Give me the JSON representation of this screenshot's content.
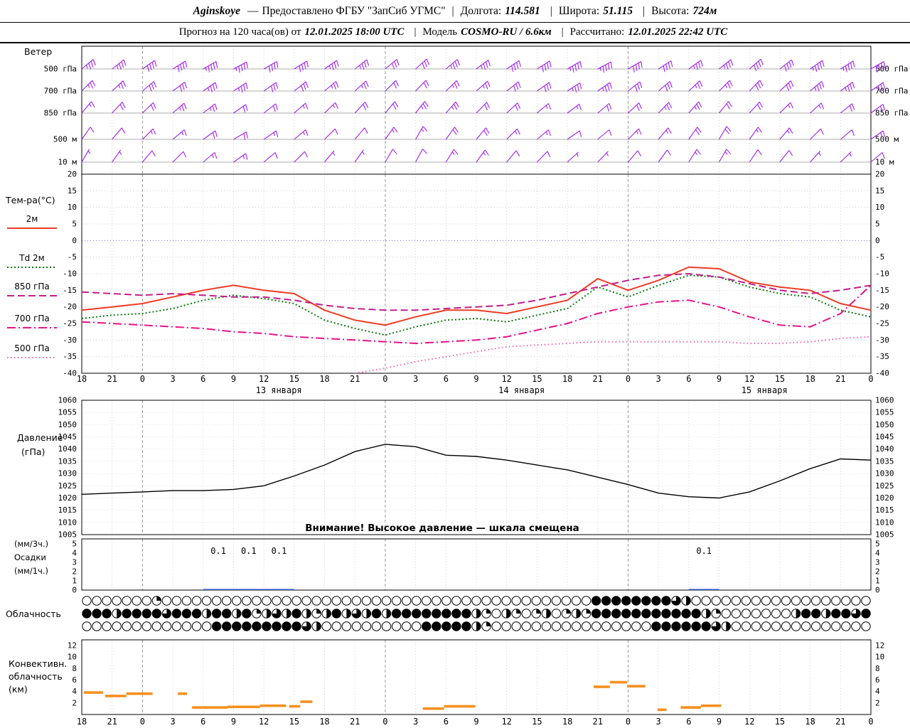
{
  "header": {
    "station": "Aginskoye",
    "dash": "—",
    "provider": "Предоставлено ФГБУ \"ЗапСиб УГМС\"",
    "sep": "|",
    "lon_label": "Долгота:",
    "lon_value": "114.581",
    "lat_label": "Широта:",
    "lat_value": "51.115",
    "alt_label": "Высота:",
    "alt_value": "724м",
    "forecast_label": "Прогноз на 120 часа(ов) от",
    "forecast_run": "12.01.2025 18:00 UTC",
    "model_label": "Модель",
    "model_value": "COSMO-RU / 6.6км",
    "calc_label": "Рассчитано:",
    "calc_value": "12.01.2025 22:42 UTC"
  },
  "chart_data": {
    "type": "meteogram",
    "x": {
      "hour_labels": [
        "18",
        "21",
        "0",
        "3",
        "6",
        "9",
        "12",
        "15",
        "18",
        "21",
        "0",
        "3",
        "6",
        "9",
        "12",
        "15",
        "18",
        "21",
        "0",
        "3",
        "6",
        "9",
        "12",
        "15",
        "18",
        "21",
        "0"
      ],
      "date_labels": [
        {
          "text": "13 января",
          "tick": 6
        },
        {
          "text": "14 января",
          "tick": 14
        },
        {
          "text": "15 января",
          "tick": 22
        }
      ],
      "hours_total": 78
    },
    "wind": {
      "panel_label": "Ветер",
      "color": "#a020f0",
      "levels": [
        {
          "label": "500 гПа",
          "dirs": [
            50,
            52,
            55,
            58,
            60,
            62,
            60,
            58,
            55,
            52,
            50,
            48,
            50,
            53,
            56,
            58,
            60,
            62,
            60,
            57,
            54,
            51,
            49,
            52,
            55,
            58,
            60
          ],
          "speeds": [
            35,
            35,
            40,
            40,
            45,
            45,
            40,
            40,
            35,
            35,
            30,
            30,
            35,
            35,
            40,
            40,
            45,
            45,
            40,
            40,
            35,
            35,
            40,
            40,
            45,
            45,
            40
          ]
        },
        {
          "label": "700 гПа",
          "dirs": [
            45,
            47,
            50,
            53,
            55,
            57,
            55,
            52,
            50,
            48,
            45,
            44,
            46,
            49,
            52,
            55,
            57,
            55,
            52,
            50,
            47,
            45,
            44,
            47,
            50,
            53,
            55
          ],
          "speeds": [
            25,
            25,
            30,
            30,
            35,
            35,
            30,
            30,
            25,
            25,
            20,
            20,
            25,
            25,
            30,
            30,
            35,
            35,
            30,
            30,
            25,
            25,
            30,
            30,
            35,
            35,
            30
          ]
        },
        {
          "label": "850 гПа",
          "dirs": [
            40,
            43,
            46,
            49,
            52,
            55,
            52,
            49,
            46,
            43,
            40,
            38,
            41,
            44,
            47,
            50,
            53,
            50,
            47,
            44,
            41,
            39,
            42,
            45,
            48,
            51,
            54
          ],
          "speeds": [
            15,
            20,
            20,
            25,
            25,
            20,
            20,
            15,
            15,
            20,
            20,
            25,
            25,
            20,
            20,
            15,
            15,
            20,
            20,
            25,
            25,
            20,
            20,
            15,
            15,
            20,
            20
          ]
        },
        {
          "label": "500 м",
          "dirs": [
            35,
            40,
            45,
            50,
            55,
            60,
            55,
            50,
            45,
            40,
            35,
            30,
            35,
            40,
            45,
            50,
            55,
            50,
            45,
            40,
            35,
            30,
            35,
            40,
            45,
            50,
            55
          ],
          "speeds": [
            10,
            10,
            15,
            15,
            20,
            20,
            15,
            15,
            10,
            10,
            15,
            15,
            20,
            20,
            15,
            15,
            10,
            10,
            15,
            15,
            20,
            20,
            15,
            15,
            10,
            10,
            15
          ]
        },
        {
          "label": "10 м",
          "dirs": [
            30,
            35,
            40,
            45,
            50,
            55,
            50,
            45,
            40,
            35,
            30,
            28,
            32,
            36,
            40,
            44,
            48,
            44,
            40,
            36,
            32,
            30,
            34,
            38,
            42,
            46,
            50
          ],
          "speeds": [
            5,
            5,
            10,
            10,
            15,
            15,
            10,
            10,
            5,
            5,
            10,
            10,
            15,
            15,
            10,
            10,
            5,
            5,
            10,
            10,
            15,
            15,
            10,
            10,
            5,
            5,
            10
          ]
        }
      ]
    },
    "temperature": {
      "panel_label": "Тем-ра(°C)",
      "y_min": -40,
      "y_max": 20,
      "y_ticks": [
        20,
        15,
        10,
        5,
        0,
        -5,
        -10,
        -15,
        -20,
        -25,
        -30,
        -35,
        -40
      ],
      "series": [
        {
          "name": "2м",
          "color": "#ef3b24",
          "style": "solid",
          "values": [
            -21,
            -20,
            -19,
            -17,
            -15,
            -13.5,
            -15,
            -16,
            -21,
            -24,
            -25.5,
            -23,
            -21,
            -21,
            -22,
            -20,
            -18,
            -11.5,
            -15,
            -12,
            -8,
            -8.5,
            -12.5,
            -14,
            -15,
            -19,
            -21
          ]
        },
        {
          "name": "Td 2м",
          "color": "#0a7a0a",
          "style": "dotted",
          "values": [
            -23.5,
            -22.5,
            -22,
            -20.5,
            -18,
            -16.5,
            -17.5,
            -19,
            -24,
            -26.5,
            -28.5,
            -26,
            -24,
            -23.5,
            -24.5,
            -22.5,
            -20.5,
            -14,
            -17,
            -13.5,
            -10.5,
            -11,
            -14,
            -16,
            -17,
            -21,
            -23
          ]
        },
        {
          "name": "850 гПа",
          "color": "#c21e8c",
          "style": "dash",
          "values": [
            -15.5,
            -16,
            -16.5,
            -16,
            -16.5,
            -17,
            -17,
            -18,
            -19.5,
            -20.5,
            -21,
            -21,
            -20.5,
            -20,
            -19.5,
            -18,
            -16,
            -14,
            -12,
            -10.5,
            -10,
            -11,
            -13,
            -15,
            -16,
            -15,
            -13.5
          ]
        },
        {
          "name": "700 гПа",
          "color": "#e8128a",
          "style": "dashdot",
          "values": [
            -24.5,
            -25,
            -25.5,
            -26,
            -26.5,
            -27.5,
            -28,
            -29,
            -29.5,
            -30,
            -30.5,
            -31,
            -30.5,
            -30,
            -29,
            -27,
            -25,
            -22,
            -20,
            -18.5,
            -18,
            -20,
            -23,
            -25.5,
            -26,
            -22,
            -13.5
          ]
        },
        {
          "name": "500 гПа",
          "color": "#f060aa",
          "style": "sdot",
          "values": [
            null,
            null,
            null,
            null,
            null,
            null,
            null,
            null,
            null,
            -40,
            -38.5,
            -36.5,
            -35,
            -33.5,
            -32,
            -31.5,
            -31,
            -30.5,
            -30.5,
            -30.5,
            -30.5,
            -30.5,
            -31,
            -31,
            -30.5,
            -29.5,
            -29
          ]
        }
      ]
    },
    "pressure": {
      "panel_label_1": "Давление",
      "panel_label_2": "(гПа)",
      "y_ticks": [
        1060,
        1055,
        1050,
        1045,
        1040,
        1035,
        1030,
        1025,
        1020,
        1015,
        1010,
        1005
      ],
      "warning": "Внимание! Высокое давление — шкала смещена",
      "color": "#000000",
      "values": [
        1021.5,
        1022,
        1022.5,
        1023,
        1023,
        1023.5,
        1025,
        1029,
        1033.5,
        1039,
        1042,
        1041,
        1037.5,
        1037,
        1035.5,
        1033.5,
        1031.5,
        1028.5,
        1025.5,
        1022,
        1020.5,
        1020,
        1022.5,
        1027,
        1032,
        1036,
        1035.5
      ]
    },
    "precipitation": {
      "labels_left": [
        "(мм/3ч.)",
        "Осадки",
        "(мм/1ч.)"
      ],
      "y_ticks": [
        5,
        4,
        3,
        2,
        1,
        0
      ],
      "bar_color": "#3a5fcd",
      "values": [
        0,
        0,
        0,
        0,
        0.1,
        0.1,
        0.1,
        0,
        0,
        0,
        0,
        0,
        0,
        0,
        0,
        0,
        0,
        0,
        0,
        0,
        0.1,
        0,
        0,
        0,
        0,
        0,
        0
      ]
    },
    "cloud": {
      "panel_label": "Облачность",
      "rows": [
        [
          [
            7,
            0
          ],
          [
            1,
            1
          ],
          [
            43,
            0
          ],
          [
            8,
            4
          ],
          [
            1,
            3
          ],
          [
            1,
            2
          ],
          [
            18,
            0
          ]
        ],
        [
          [
            3,
            4
          ],
          [
            1,
            2
          ],
          [
            4,
            4
          ],
          [
            1,
            3
          ],
          [
            3,
            4
          ],
          [
            1,
            2
          ],
          [
            2,
            4
          ],
          [
            1,
            2
          ],
          [
            1,
            4
          ],
          [
            1,
            1
          ],
          [
            1,
            2
          ],
          [
            1,
            3
          ],
          [
            1,
            2
          ],
          [
            1,
            4
          ],
          [
            1,
            2
          ],
          [
            1,
            1
          ],
          [
            1,
            2
          ],
          [
            1,
            4
          ],
          [
            1,
            2
          ],
          [
            1,
            3
          ],
          [
            1,
            2
          ],
          [
            1,
            4
          ],
          [
            1,
            2
          ],
          [
            8,
            4
          ],
          [
            1,
            2
          ],
          [
            1,
            1
          ],
          [
            1,
            0
          ],
          [
            1,
            2
          ],
          [
            1,
            1
          ],
          [
            1,
            0
          ],
          [
            1,
            1
          ],
          [
            1,
            2
          ],
          [
            1,
            0
          ],
          [
            1,
            1
          ],
          [
            1,
            2
          ],
          [
            1,
            1
          ],
          [
            11,
            4
          ],
          [
            1,
            2
          ],
          [
            1,
            1
          ],
          [
            7,
            0
          ],
          [
            1,
            2
          ],
          [
            2,
            4
          ],
          [
            1,
            2
          ],
          [
            2,
            4
          ],
          [
            1,
            3
          ],
          [
            1,
            4
          ]
        ],
        [
          [
            13,
            0
          ],
          [
            9,
            4
          ],
          [
            1,
            3
          ],
          [
            1,
            2
          ],
          [
            10,
            0
          ],
          [
            5,
            4
          ],
          [
            1,
            2
          ],
          [
            1,
            1
          ],
          [
            16,
            0
          ],
          [
            6,
            4
          ],
          [
            1,
            3
          ],
          [
            1,
            2
          ],
          [
            14,
            0
          ]
        ]
      ]
    },
    "convective": {
      "panel_labels": [
        "Конвективн.",
        "облачность",
        "(км)"
      ],
      "y_ticks": [
        12,
        10,
        8,
        6,
        4,
        2
      ],
      "color": "#f5901e",
      "bars": [
        {
          "h0": 0.2,
          "h1": 2.1,
          "km": 3.8
        },
        {
          "h0": 2.3,
          "h1": 4.4,
          "km": 3.2
        },
        {
          "h0": 4.4,
          "h1": 7.0,
          "km": 3.6
        },
        {
          "h0": 9.5,
          "h1": 10.4,
          "km": 3.6
        },
        {
          "h0": 10.9,
          "h1": 14.4,
          "km": 1.2
        },
        {
          "h0": 14.4,
          "h1": 17.6,
          "km": 1.3
        },
        {
          "h0": 17.6,
          "h1": 20.2,
          "km": 1.5
        },
        {
          "h0": 20.5,
          "h1": 21.6,
          "km": 1.4
        },
        {
          "h0": 21.6,
          "h1": 22.8,
          "km": 2.2
        },
        {
          "h0": 33.7,
          "h1": 35.8,
          "km": 1.0
        },
        {
          "h0": 35.8,
          "h1": 38.9,
          "km": 1.4
        },
        {
          "h0": 50.6,
          "h1": 52.2,
          "km": 4.8
        },
        {
          "h0": 52.2,
          "h1": 53.9,
          "km": 5.6
        },
        {
          "h0": 53.9,
          "h1": 55.7,
          "km": 4.9
        },
        {
          "h0": 56.9,
          "h1": 57.8,
          "km": 0.8
        },
        {
          "h0": 59.2,
          "h1": 61.2,
          "km": 1.2
        },
        {
          "h0": 61.2,
          "h1": 63.2,
          "km": 1.5
        }
      ]
    }
  }
}
